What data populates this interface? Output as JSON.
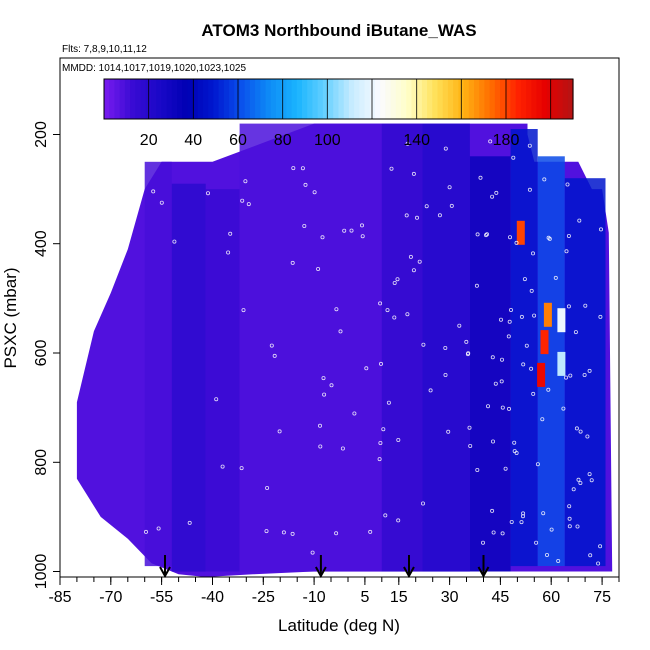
{
  "chart_data": {
    "type": "heatmap",
    "title": "ATOM3 Northbound iButane_WAS",
    "subtitle_flights": "Flts: 7,8,9,10,11,12",
    "subtitle_dates": "MMDD: 1014,1017,1019,1020,1023,1025",
    "xlabel": "Latitude (deg N)",
    "ylabel": "PSXC (mbar)",
    "xlim": [
      -85,
      80
    ],
    "ylim": [
      1010,
      60
    ],
    "x_ticks": [
      -85,
      -70,
      -55,
      -40,
      -25,
      -10,
      5,
      15,
      30,
      45,
      60,
      75
    ],
    "y_ticks": [
      200,
      400,
      600,
      800,
      1000
    ],
    "colorbar": {
      "range": [
        0,
        210
      ],
      "tick_values": [
        20,
        40,
        60,
        80,
        100,
        140,
        180
      ],
      "colors": [
        "#7a1cf0",
        "#3a0bd4",
        "#1a08c8",
        "#0000b4",
        "#0018d0",
        "#0a52ec",
        "#0e8cf6",
        "#1ab4fe",
        "#64d0ff",
        "#c8ecff",
        "#fafaff",
        "#ffffc8",
        "#ffe15a",
        "#ffb414",
        "#ff6e00",
        "#ff2200",
        "#e60000",
        "#b41414"
      ]
    },
    "background_value": 8,
    "latitude_bands": [
      {
        "lat_min": -60,
        "lat_max": -52,
        "p_top": 250,
        "p_bottom": 990,
        "value": 10
      },
      {
        "lat_min": -52,
        "lat_max": -42,
        "p_top": 290,
        "p_bottom": 1000,
        "value": 18
      },
      {
        "lat_min": -42,
        "lat_max": -32,
        "p_top": 300,
        "p_bottom": 1000,
        "value": 13
      },
      {
        "lat_min": -32,
        "lat_max": 10,
        "p_top": 180,
        "p_bottom": 1000,
        "value": 9
      },
      {
        "lat_min": 10,
        "lat_max": 22,
        "p_top": 180,
        "p_bottom": 1000,
        "value": 16
      },
      {
        "lat_min": 22,
        "lat_max": 36,
        "p_top": 180,
        "p_bottom": 1000,
        "value": 22
      },
      {
        "lat_min": 36,
        "lat_max": 48,
        "p_top": 240,
        "p_bottom": 1000,
        "value": 32
      },
      {
        "lat_min": 48,
        "lat_max": 56,
        "p_top": 190,
        "p_bottom": 990,
        "value": 48
      },
      {
        "lat_min": 56,
        "lat_max": 64,
        "p_top": 240,
        "p_bottom": 990,
        "value": 60
      },
      {
        "lat_min": 64,
        "lat_max": 76,
        "p_top": 280,
        "p_bottom": 990,
        "value": 48
      }
    ],
    "hotspots": [
      {
        "lat": 51,
        "p": 380,
        "value": 180
      },
      {
        "lat": 59,
        "p": 530,
        "value": 170
      },
      {
        "lat": 58,
        "p": 580,
        "value": 185
      },
      {
        "lat": 57,
        "p": 640,
        "value": 195
      },
      {
        "lat": 63,
        "p": 540,
        "value": 120
      },
      {
        "lat": 63,
        "p": 620,
        "value": 110
      }
    ],
    "flight_arrows_lat": [
      -54,
      -8,
      18,
      40
    ]
  }
}
